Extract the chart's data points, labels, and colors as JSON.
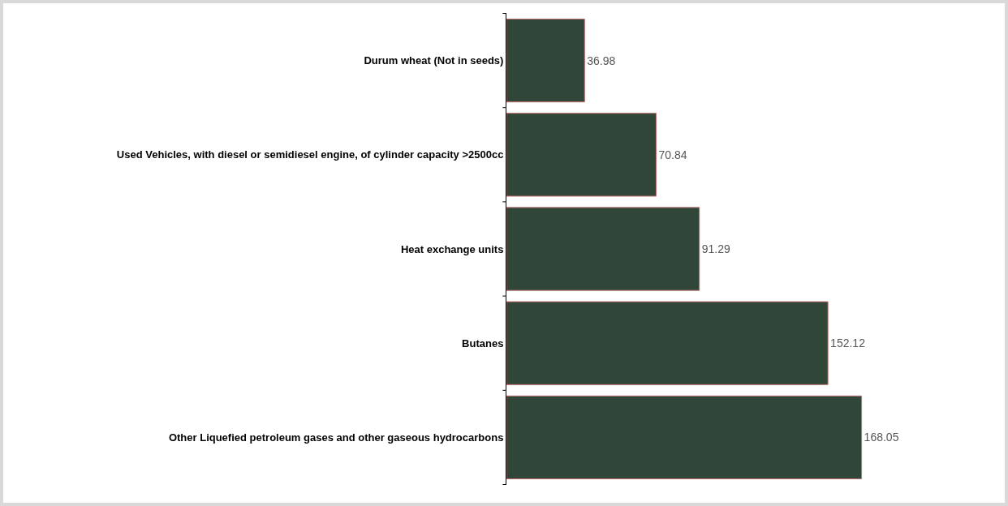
{
  "chart_data": {
    "type": "bar",
    "orientation": "horizontal",
    "categories": [
      "Durum wheat (Not in seeds)",
      "Used Vehicles, with diesel or semidiesel engine, of cylinder capacity >2500cc",
      "Heat exchange units",
      "Butanes",
      "Other Liquefied petroleum gases and other gaseous hydrocarbons"
    ],
    "values": [
      36.98,
      70.84,
      91.29,
      152.12,
      168.05
    ],
    "color": "#2f4639",
    "data_labels": true,
    "legend": false
  }
}
